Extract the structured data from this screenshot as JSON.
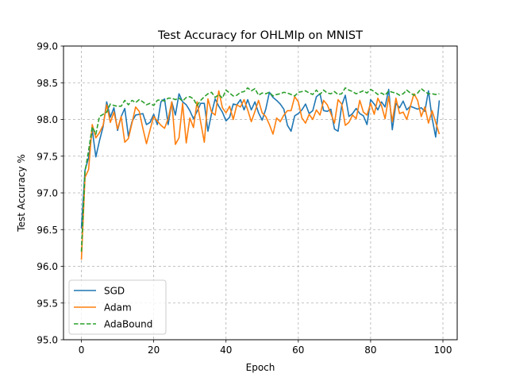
{
  "chart_data": {
    "type": "line",
    "title": "Test Accuracy for OHLMIp on MNIST",
    "xlabel": "Epoch",
    "ylabel": "Test Accuracy %",
    "xlim": [
      -4.95,
      103.95
    ],
    "ylim": [
      95.0,
      99.0
    ],
    "xticks": [
      0,
      20,
      40,
      60,
      80,
      100
    ],
    "yticks": [
      95.0,
      95.5,
      96.0,
      96.5,
      97.0,
      97.5,
      98.0,
      98.5,
      99.0
    ],
    "grid": true,
    "legend_position": "lower-left",
    "series": [
      {
        "name": "SGD",
        "color": "#1f77b4",
        "style": "solid",
        "values": [
          96.52,
          97.31,
          97.48,
          97.86,
          97.49,
          97.71,
          97.9,
          98.24,
          98.03,
          98.16,
          97.85,
          98.04,
          98.15,
          97.77,
          97.97,
          98.06,
          98.07,
          98.08,
          97.93,
          97.96,
          98.07,
          97.93,
          98.24,
          98.28,
          97.93,
          98.24,
          98.06,
          98.35,
          98.24,
          98.2,
          98.12,
          98.01,
          98.11,
          98.22,
          98.22,
          97.84,
          98.08,
          98.28,
          98.18,
          98.1,
          97.98,
          98.03,
          98.21,
          98.2,
          98.27,
          98.13,
          98.27,
          98.13,
          98.24,
          98.09,
          97.99,
          98.14,
          98.37,
          98.3,
          98.26,
          98.21,
          98.14,
          97.92,
          97.84,
          98.05,
          98.08,
          98.13,
          98.21,
          98.08,
          98.12,
          98.31,
          98.35,
          98.12,
          98.11,
          98.14,
          97.87,
          97.84,
          98.19,
          98.33,
          98.04,
          98.08,
          98.15,
          98.08,
          98.05,
          97.93,
          98.27,
          98.21,
          98.13,
          98.24,
          98.17,
          98.41,
          97.86,
          98.22,
          98.16,
          98.25,
          98.13,
          98.18,
          98.16,
          98.14,
          98.16,
          98.11,
          98.39,
          98.02,
          97.76,
          98.26
        ]
      },
      {
        "name": "Adam",
        "color": "#ff7f0e",
        "style": "solid",
        "values": [
          96.09,
          97.21,
          97.32,
          97.93,
          97.75,
          97.82,
          97.92,
          98.2,
          97.96,
          98.1,
          97.87,
          98.04,
          97.69,
          97.74,
          97.95,
          98.17,
          98.11,
          97.88,
          97.67,
          97.86,
          98.04,
          97.98,
          97.92,
          97.88,
          98.01,
          98.24,
          97.66,
          97.75,
          98.22,
          97.68,
          98.02,
          97.89,
          98.24,
          97.96,
          97.69,
          98.28,
          98.1,
          98.06,
          98.39,
          98.16,
          98.09,
          98.18,
          98.0,
          98.2,
          98.17,
          98.27,
          98.13,
          97.97,
          98.11,
          98.26,
          98.09,
          98.04,
          97.93,
          97.8,
          98.02,
          97.97,
          98.06,
          98.12,
          98.12,
          98.31,
          98.24,
          98.02,
          97.95,
          98.07,
          98.0,
          98.13,
          98.06,
          98.26,
          98.2,
          98.08,
          97.95,
          98.27,
          98.21,
          97.92,
          97.96,
          98.06,
          98.01,
          98.26,
          98.1,
          98.06,
          98.22,
          98.07,
          98.29,
          98.19,
          98.01,
          98.31,
          97.97,
          98.29,
          98.08,
          98.1,
          98.0,
          98.18,
          98.35,
          98.26,
          98.04,
          98.17,
          97.95,
          98.12,
          97.96,
          97.8
        ]
      },
      {
        "name": "AdaBound",
        "color": "#2ca02c",
        "style": "dashed",
        "values": [
          96.2,
          97.29,
          97.58,
          97.9,
          97.8,
          98.04,
          98.07,
          98.1,
          98.21,
          98.19,
          98.18,
          98.18,
          98.26,
          98.2,
          98.26,
          98.23,
          98.27,
          98.24,
          98.2,
          98.22,
          98.19,
          98.26,
          98.27,
          98.25,
          98.29,
          98.29,
          98.27,
          98.29,
          98.25,
          98.3,
          98.31,
          98.28,
          98.19,
          98.26,
          98.31,
          98.35,
          98.37,
          98.3,
          98.34,
          98.29,
          98.4,
          98.36,
          98.32,
          98.33,
          98.37,
          98.38,
          98.43,
          98.39,
          98.42,
          98.33,
          98.36,
          98.35,
          98.37,
          98.32,
          98.34,
          98.35,
          98.37,
          98.36,
          98.34,
          98.32,
          98.37,
          98.38,
          98.39,
          98.36,
          98.34,
          98.4,
          98.34,
          98.4,
          98.36,
          98.35,
          98.38,
          98.34,
          98.35,
          98.43,
          98.4,
          98.38,
          98.35,
          98.37,
          98.39,
          98.36,
          98.41,
          98.38,
          98.34,
          98.36,
          98.33,
          98.39,
          98.37,
          98.36,
          98.33,
          98.35,
          98.4,
          98.36,
          98.33,
          98.36,
          98.42,
          98.38,
          98.35,
          98.35,
          98.34,
          98.35
        ]
      }
    ]
  }
}
